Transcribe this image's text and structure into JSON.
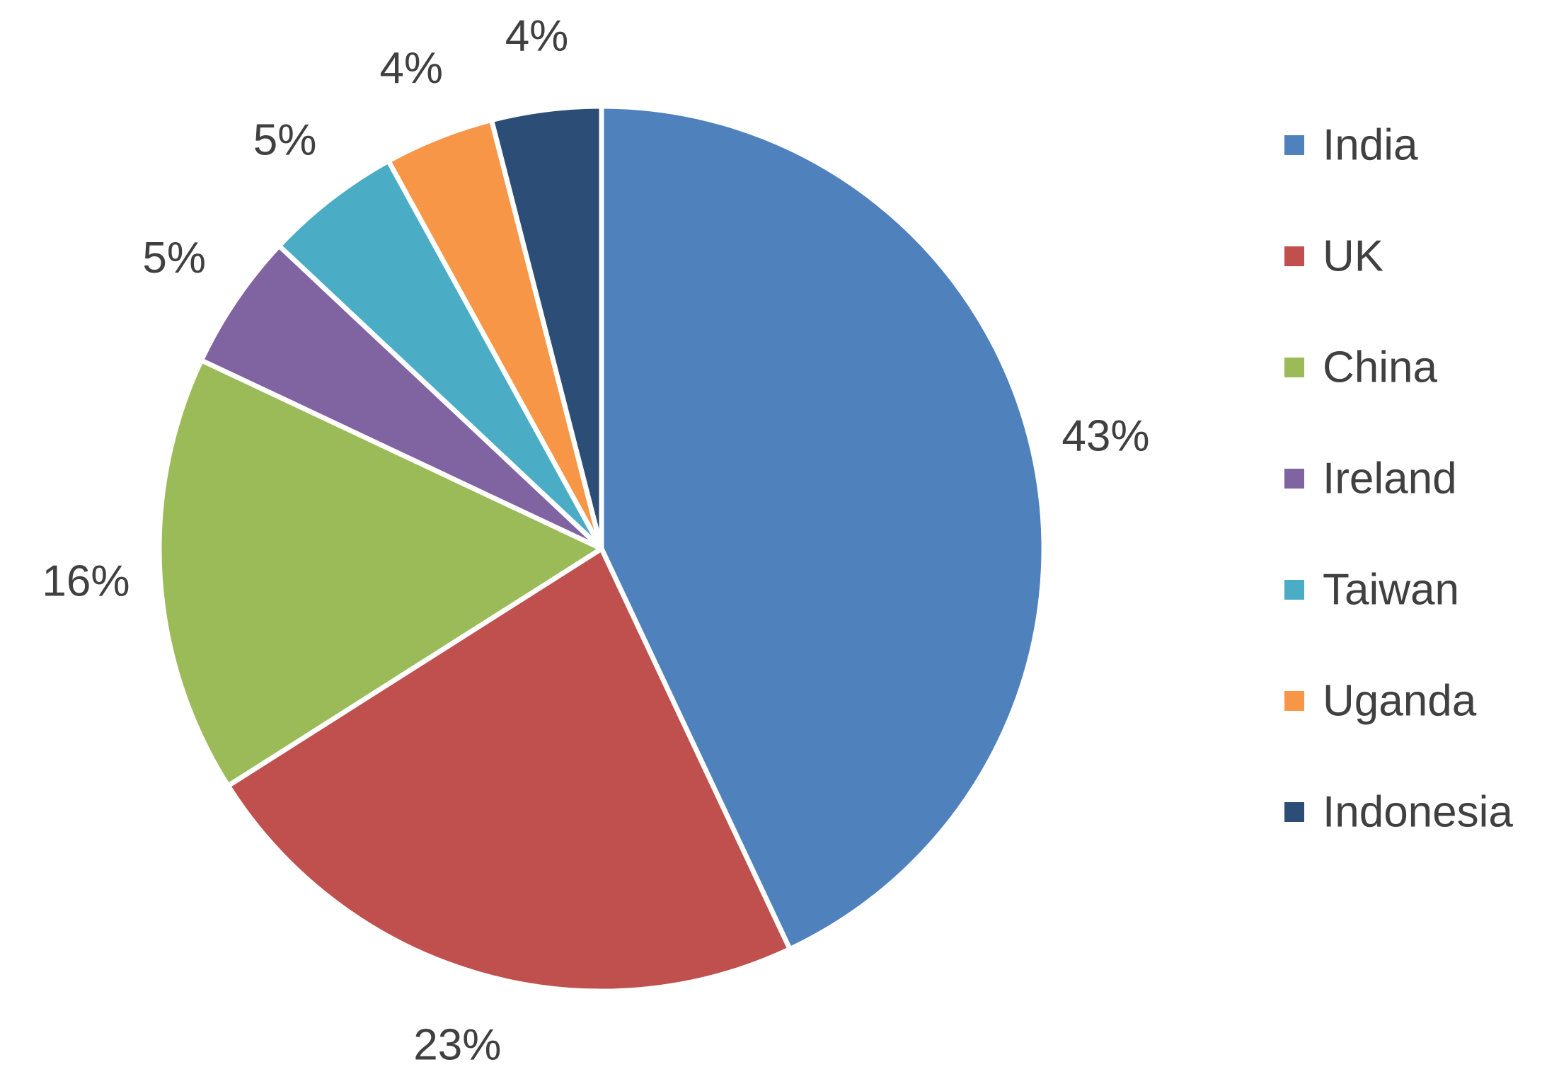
{
  "chart_data": {
    "type": "pie",
    "title": "",
    "legend": "right",
    "start_angle_deg": 0,
    "direction": "clockwise",
    "slices": [
      {
        "label": "India",
        "value": 43,
        "value_label": "43%",
        "color": "#4F81BD"
      },
      {
        "label": "UK",
        "value": 23,
        "value_label": "23%",
        "color": "#C0504D"
      },
      {
        "label": "China",
        "value": 16,
        "value_label": "16%",
        "color": "#9BBB59"
      },
      {
        "label": "Ireland",
        "value": 5,
        "value_label": "5%",
        "color": "#8064A2"
      },
      {
        "label": "Taiwan",
        "value": 5,
        "value_label": "5%",
        "color": "#4BACC6"
      },
      {
        "label": "Uganda",
        "value": 4,
        "value_label": "4%",
        "color": "#F79646"
      },
      {
        "label": "Indonesia",
        "value": 4,
        "value_label": "4%",
        "color": "#2C4D75"
      }
    ]
  }
}
